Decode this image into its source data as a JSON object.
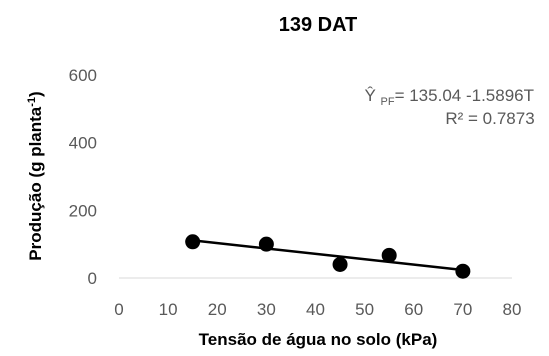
{
  "chart_data": {
    "type": "scatter",
    "title": "139 DAT",
    "xlabel": "Tensão de água no solo (kPa)",
    "ylabel_main": "Produção (g planta",
    "ylabel_sup": "-1",
    "ylabel_end": ")",
    "xlim": [
      0,
      80
    ],
    "ylim": [
      0,
      600
    ],
    "xticks": [
      0,
      10,
      20,
      30,
      40,
      50,
      60,
      70,
      80
    ],
    "yticks": [
      0,
      200,
      400,
      600
    ],
    "grid": false,
    "series": [
      {
        "x": [
          15,
          30,
          45,
          55,
          70
        ],
        "y": [
          107,
          100,
          40,
          67,
          20
        ],
        "color": "#000000"
      }
    ],
    "trendline": {
      "type": "linear",
      "intercept": 135.04,
      "slope": -1.5896,
      "x_start": 15,
      "x_end": 70,
      "color": "#000000"
    },
    "equation": {
      "prefix": "Ŷ ",
      "subscript": "PF",
      "body": "= 135.04 -1.5896T",
      "r2": "R² = 0.7873"
    }
  }
}
